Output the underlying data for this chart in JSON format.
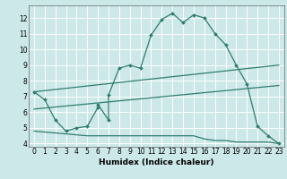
{
  "bg_color": "#cce8e8",
  "grid_color": "#ffffff",
  "line_color": "#2e7d6e",
  "xlabel": "Humidex (Indice chaleur)",
  "xlim": [
    -0.5,
    23.5
  ],
  "ylim": [
    3.8,
    12.8
  ],
  "yticks": [
    4,
    5,
    6,
    7,
    8,
    9,
    10,
    11,
    12
  ],
  "xticks": [
    0,
    1,
    2,
    3,
    4,
    5,
    6,
    7,
    8,
    9,
    10,
    11,
    12,
    13,
    14,
    15,
    16,
    17,
    18,
    19,
    20,
    21,
    22,
    23
  ],
  "series_main": {
    "x": [
      0,
      1,
      2,
      3,
      4,
      5,
      6,
      6,
      7,
      7,
      8,
      9,
      10,
      11,
      12,
      13,
      14,
      15,
      16,
      17,
      18,
      19,
      20,
      21,
      22,
      23
    ],
    "y": [
      7.3,
      6.8,
      5.5,
      4.8,
      5.0,
      5.1,
      6.3,
      6.5,
      5.5,
      7.1,
      8.8,
      9.0,
      8.8,
      10.9,
      11.9,
      12.3,
      11.7,
      12.2,
      12.0,
      11.0,
      10.3,
      9.0,
      7.8,
      5.1,
      4.5,
      4.0
    ]
  },
  "line1": {
    "x": [
      0,
      23
    ],
    "y": [
      7.3,
      9.0
    ]
  },
  "line2": {
    "x": [
      0,
      23
    ],
    "y": [
      6.2,
      7.7
    ]
  },
  "line3_x": [
    0,
    5,
    6,
    7,
    8,
    9,
    10,
    11,
    12,
    13,
    14,
    15,
    16,
    17,
    18,
    19,
    20,
    21,
    22,
    23
  ],
  "line3_y": [
    4.8,
    4.5,
    4.5,
    4.5,
    4.5,
    4.5,
    4.5,
    4.5,
    4.5,
    4.5,
    4.5,
    4.5,
    4.3,
    4.2,
    4.2,
    4.1,
    4.1,
    4.1,
    4.1,
    4.0
  ]
}
